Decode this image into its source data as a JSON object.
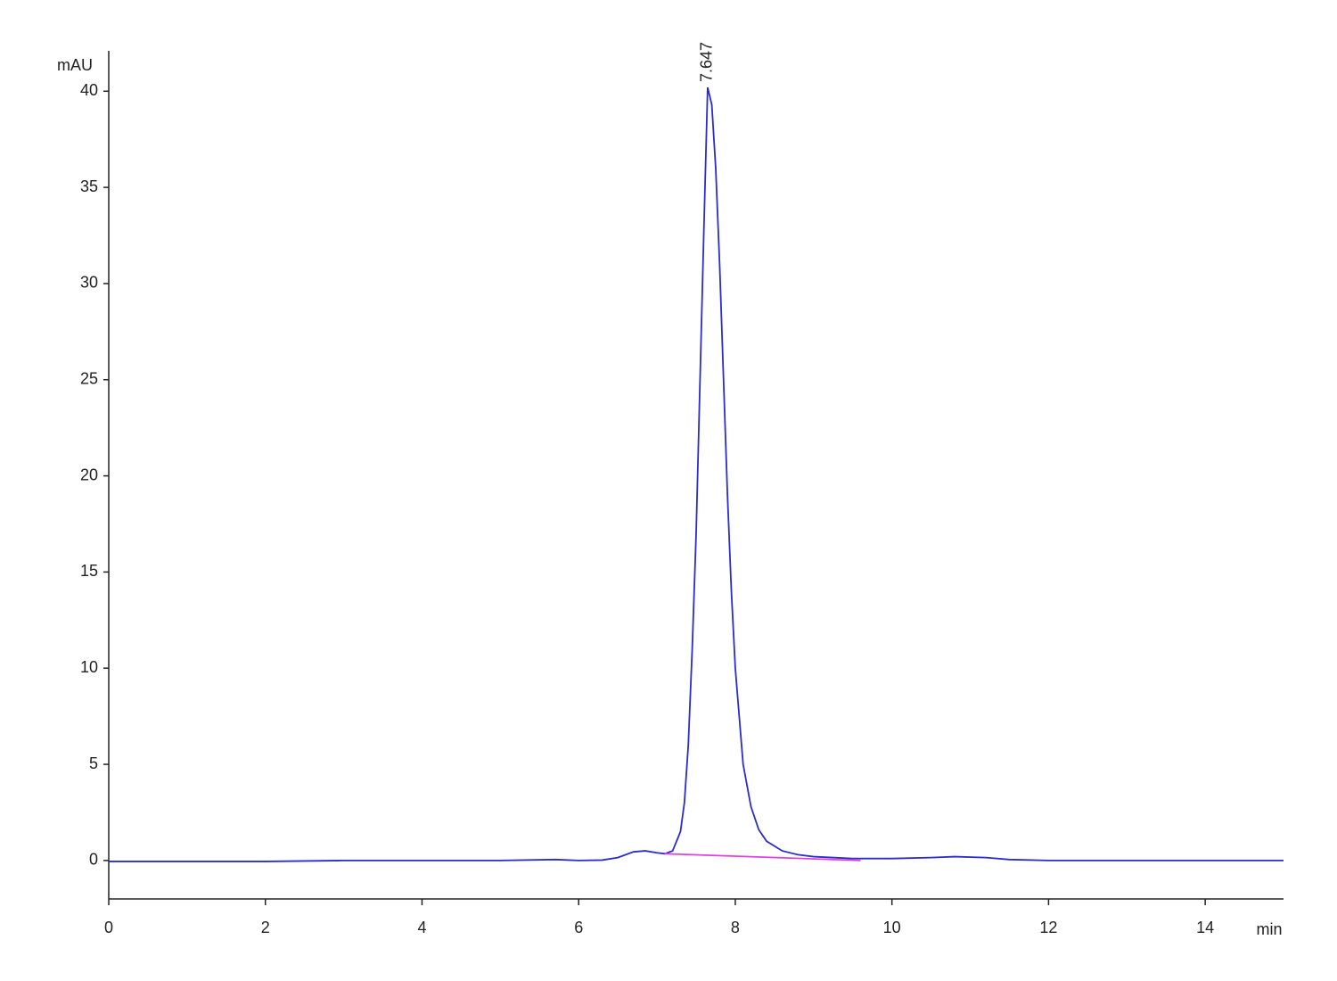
{
  "chart_data": {
    "type": "line",
    "y_unit": "mAU",
    "x_unit": "min",
    "x": [
      0,
      1,
      2,
      3,
      4,
      5,
      5.7,
      6,
      6.3,
      6.5,
      6.7,
      6.85,
      7.0,
      7.1,
      7.2,
      7.3,
      7.35,
      7.4,
      7.45,
      7.5,
      7.55,
      7.6,
      7.647,
      7.7,
      7.75,
      7.8,
      7.85,
      7.9,
      7.95,
      8.0,
      8.1,
      8.2,
      8.3,
      8.4,
      8.6,
      8.8,
      9.0,
      9.5,
      10,
      10.5,
      10.8,
      11.2,
      11.5,
      12,
      13,
      14,
      15
    ],
    "series": [
      {
        "color": "#2b2bd0",
        "values": [
          -0.05,
          -0.05,
          -0.05,
          0,
          0,
          0,
          0.05,
          0,
          0.02,
          0.15,
          0.45,
          0.5,
          0.4,
          0.35,
          0.5,
          1.5,
          3,
          6,
          11,
          17,
          25,
          33,
          40.2,
          39.3,
          36,
          31,
          25,
          19,
          14,
          10,
          5,
          2.8,
          1.6,
          1,
          0.5,
          0.3,
          0.2,
          0.1,
          0.1,
          0.15,
          0.2,
          0.15,
          0.05,
          0,
          0,
          0,
          0
        ]
      },
      {
        "color": "#e040e0",
        "x": [
          7.1,
          9.6
        ],
        "values": [
          0.35,
          0
        ]
      }
    ],
    "peak_labels": [
      {
        "x": 7.647,
        "y": 40.2
      }
    ],
    "xlim": [
      0,
      15
    ],
    "ylim": [
      -2,
      42.1
    ],
    "xticks": [
      0,
      2,
      4,
      6,
      8,
      10,
      12,
      14
    ],
    "yticks": [
      0,
      5,
      10,
      15,
      20,
      25,
      30,
      35,
      40
    ],
    "grid": false
  }
}
